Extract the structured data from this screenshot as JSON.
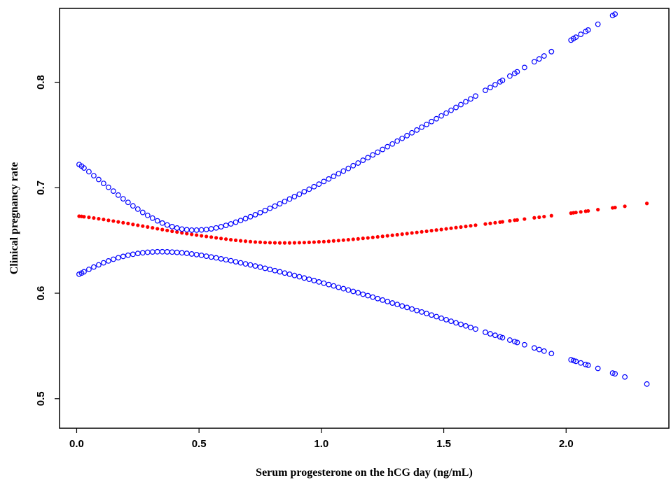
{
  "chart_data": {
    "type": "scatter",
    "title": "",
    "xlabel": "Serum progesterone on the hCG day (ng/mL)",
    "ylabel": "Clinical pregnancy rate",
    "xlim": [
      -0.07,
      2.42
    ],
    "ylim": [
      0.472,
      0.87
    ],
    "x_ticks": [
      0.0,
      0.5,
      1.0,
      1.5,
      2.0
    ],
    "x_tick_labels": [
      "0.0",
      "0.5",
      "1.0",
      "1.5",
      "2.0"
    ],
    "y_ticks": [
      0.5,
      0.6,
      0.7,
      0.8
    ],
    "y_tick_labels": [
      "0.5",
      "0.6",
      "0.7",
      "0.8"
    ],
    "grid": false,
    "legend": "none",
    "x": [
      0.01,
      0.02,
      0.03,
      0.05,
      0.07,
      0.09,
      0.11,
      0.13,
      0.15,
      0.17,
      0.19,
      0.21,
      0.23,
      0.25,
      0.27,
      0.29,
      0.31,
      0.33,
      0.35,
      0.37,
      0.39,
      0.41,
      0.43,
      0.45,
      0.47,
      0.49,
      0.51,
      0.53,
      0.55,
      0.57,
      0.59,
      0.61,
      0.63,
      0.65,
      0.67,
      0.69,
      0.71,
      0.73,
      0.75,
      0.77,
      0.79,
      0.81,
      0.83,
      0.85,
      0.87,
      0.89,
      0.91,
      0.93,
      0.95,
      0.97,
      0.99,
      1.01,
      1.03,
      1.05,
      1.07,
      1.09,
      1.11,
      1.13,
      1.15,
      1.17,
      1.19,
      1.21,
      1.23,
      1.25,
      1.27,
      1.29,
      1.31,
      1.33,
      1.35,
      1.37,
      1.39,
      1.41,
      1.43,
      1.45,
      1.47,
      1.49,
      1.51,
      1.53,
      1.55,
      1.57,
      1.59,
      1.61,
      1.63,
      1.67,
      1.69,
      1.71,
      1.73,
      1.74,
      1.77,
      1.79,
      1.8,
      1.83,
      1.87,
      1.89,
      1.91,
      1.94,
      2.02,
      2.03,
      2.04,
      2.06,
      2.08,
      2.09,
      2.13,
      2.19,
      2.2,
      2.24,
      2.33
    ],
    "series": [
      {
        "name": "",
        "color": "#ff0000",
        "marker": "filled-dot",
        "values": [
          0.673,
          0.6728,
          0.6725,
          0.6719,
          0.6713,
          0.6706,
          0.6699,
          0.6691,
          0.6684,
          0.6676,
          0.6668,
          0.6661,
          0.6652,
          0.6644,
          0.6636,
          0.6628,
          0.662,
          0.6611,
          0.6603,
          0.6595,
          0.6587,
          0.658,
          0.6572,
          0.6565,
          0.6558,
          0.6551,
          0.6544,
          0.6538,
          0.6532,
          0.6525,
          0.6519,
          0.6513,
          0.6507,
          0.6502,
          0.6497,
          0.6493,
          0.6489,
          0.6485,
          0.6483,
          0.648,
          0.6479,
          0.6478,
          0.6477,
          0.6477,
          0.6477,
          0.6478,
          0.6479,
          0.648,
          0.6482,
          0.6484,
          0.6487,
          0.6489,
          0.6492,
          0.6496,
          0.6499,
          0.6503,
          0.6507,
          0.6511,
          0.6515,
          0.652,
          0.6524,
          0.6529,
          0.6534,
          0.6539,
          0.6544,
          0.6549,
          0.6554,
          0.656,
          0.6565,
          0.6571,
          0.6576,
          0.6582,
          0.6587,
          0.6593,
          0.6599,
          0.6604,
          0.661,
          0.6616,
          0.6622,
          0.6627,
          0.6633,
          0.6639,
          0.6645,
          0.6656,
          0.6662,
          0.6668,
          0.6674,
          0.6677,
          0.6686,
          0.6692,
          0.6694,
          0.6703,
          0.6715,
          0.672,
          0.6726,
          0.6735,
          0.6759,
          0.6762,
          0.6765,
          0.6771,
          0.6777,
          0.678,
          0.6792,
          0.6809,
          0.6812,
          0.6824,
          0.6851
        ]
      },
      {
        "name": "",
        "color": "#0000ff",
        "marker": "open-circle",
        "values": [
          0.722,
          0.7205,
          0.7187,
          0.7152,
          0.7114,
          0.7078,
          0.7041,
          0.7004,
          0.6968,
          0.693,
          0.6895,
          0.6861,
          0.6828,
          0.6797,
          0.6766,
          0.6738,
          0.6712,
          0.6686,
          0.6665,
          0.6647,
          0.6631,
          0.6618,
          0.6608,
          0.6602,
          0.6598,
          0.6598,
          0.66,
          0.6604,
          0.661,
          0.6619,
          0.663,
          0.6643,
          0.6657,
          0.6673,
          0.6689,
          0.6707,
          0.6725,
          0.6744,
          0.6764,
          0.6784,
          0.6805,
          0.6826,
          0.6848,
          0.687,
          0.6893,
          0.6916,
          0.6939,
          0.6963,
          0.6986,
          0.701,
          0.7034,
          0.7059,
          0.7083,
          0.7108,
          0.7133,
          0.7158,
          0.7183,
          0.7209,
          0.7234,
          0.726,
          0.7285,
          0.7311,
          0.7337,
          0.7363,
          0.7389,
          0.7415,
          0.7442,
          0.7468,
          0.7494,
          0.7521,
          0.7547,
          0.7574,
          0.76,
          0.7627,
          0.7654,
          0.7681,
          0.7707,
          0.7734,
          0.7761,
          0.7788,
          0.7815,
          0.7842,
          0.7869,
          0.7923,
          0.795,
          0.7977,
          0.8004,
          0.8018,
          0.8058,
          0.8085,
          0.8099,
          0.814,
          0.8194,
          0.8221,
          0.8249,
          0.829,
          0.8399,
          0.8413,
          0.8427,
          0.8454,
          0.8481,
          0.8495,
          0.855,
          0.8632,
          0.8646,
          0.8701,
          0.8824
        ]
      },
      {
        "name": "",
        "color": "#0000ff",
        "marker": "open-circle",
        "values": [
          0.618,
          0.6191,
          0.6203,
          0.6226,
          0.6248,
          0.6269,
          0.6288,
          0.6306,
          0.6322,
          0.6336,
          0.6349,
          0.636,
          0.6369,
          0.6377,
          0.6383,
          0.6388,
          0.6391,
          0.6393,
          0.6393,
          0.6392,
          0.639,
          0.6387,
          0.6383,
          0.6378,
          0.6372,
          0.6366,
          0.6359,
          0.6351,
          0.6343,
          0.6335,
          0.6326,
          0.6317,
          0.6308,
          0.6298,
          0.6288,
          0.6278,
          0.6268,
          0.6258,
          0.6247,
          0.6236,
          0.6225,
          0.6214,
          0.6203,
          0.6191,
          0.618,
          0.6168,
          0.6156,
          0.6144,
          0.6132,
          0.612,
          0.6107,
          0.6095,
          0.6082,
          0.6069,
          0.6056,
          0.6043,
          0.603,
          0.6017,
          0.6004,
          0.599,
          0.5977,
          0.5963,
          0.5949,
          0.5935,
          0.5921,
          0.5907,
          0.5893,
          0.5879,
          0.5865,
          0.585,
          0.5836,
          0.5822,
          0.5807,
          0.5793,
          0.5778,
          0.5763,
          0.5749,
          0.5734,
          0.5719,
          0.5705,
          0.569,
          0.5675,
          0.566,
          0.563,
          0.5615,
          0.5601,
          0.5586,
          0.5578,
          0.5556,
          0.5541,
          0.5533,
          0.5511,
          0.5481,
          0.5466,
          0.5451,
          0.5428,
          0.5369,
          0.5361,
          0.5354,
          0.5339,
          0.5324,
          0.5317,
          0.5287,
          0.5243,
          0.5236,
          0.5206,
          0.5139
        ]
      }
    ]
  }
}
